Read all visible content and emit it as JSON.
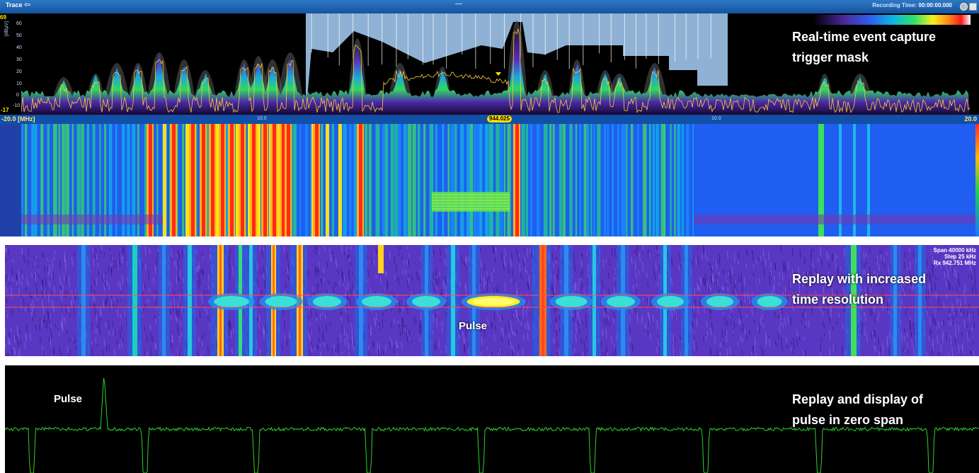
{
  "window": {
    "title": "Trace",
    "back_glyph": "⇦",
    "center_glyph": "—",
    "recording_label": "Recording Time:",
    "recording_value": "00:00:00.000"
  },
  "trace": {
    "y_max": "69",
    "y_min": "-17",
    "y_unit": "[dBµV]",
    "y_ticks": [
      "60",
      "50",
      "40",
      "30",
      "20",
      "10",
      "0",
      "-10"
    ],
    "freq_left": "-20.0 [MHz]",
    "freq_right": "20.0",
    "tick_a": "10.0",
    "tick_b": "10.0",
    "marker": "944.025",
    "callout_line1": "Real-time event capture",
    "callout_line2": "trigger mask"
  },
  "replay": {
    "span": "Span 40000 kHz",
    "step": "Step 25 kHz",
    "rx": "Rx 942.751 MHz",
    "pulse_label": "Pulse",
    "callout_line1": "Replay with increased",
    "callout_line2": "time resolution"
  },
  "zero_span": {
    "pulse_label": "Pulse",
    "callout_line1": "Replay and display of",
    "callout_line2": "pulse in zero span"
  },
  "colors": {
    "trace_line": "#ffcc33",
    "mask_fill": "#8fb1d4",
    "zero_span_line": "#2bd42b",
    "titlebar": "#1a5fb0"
  },
  "icons": [
    "back-arrow-icon",
    "settings-icon",
    "close-icon"
  ]
}
